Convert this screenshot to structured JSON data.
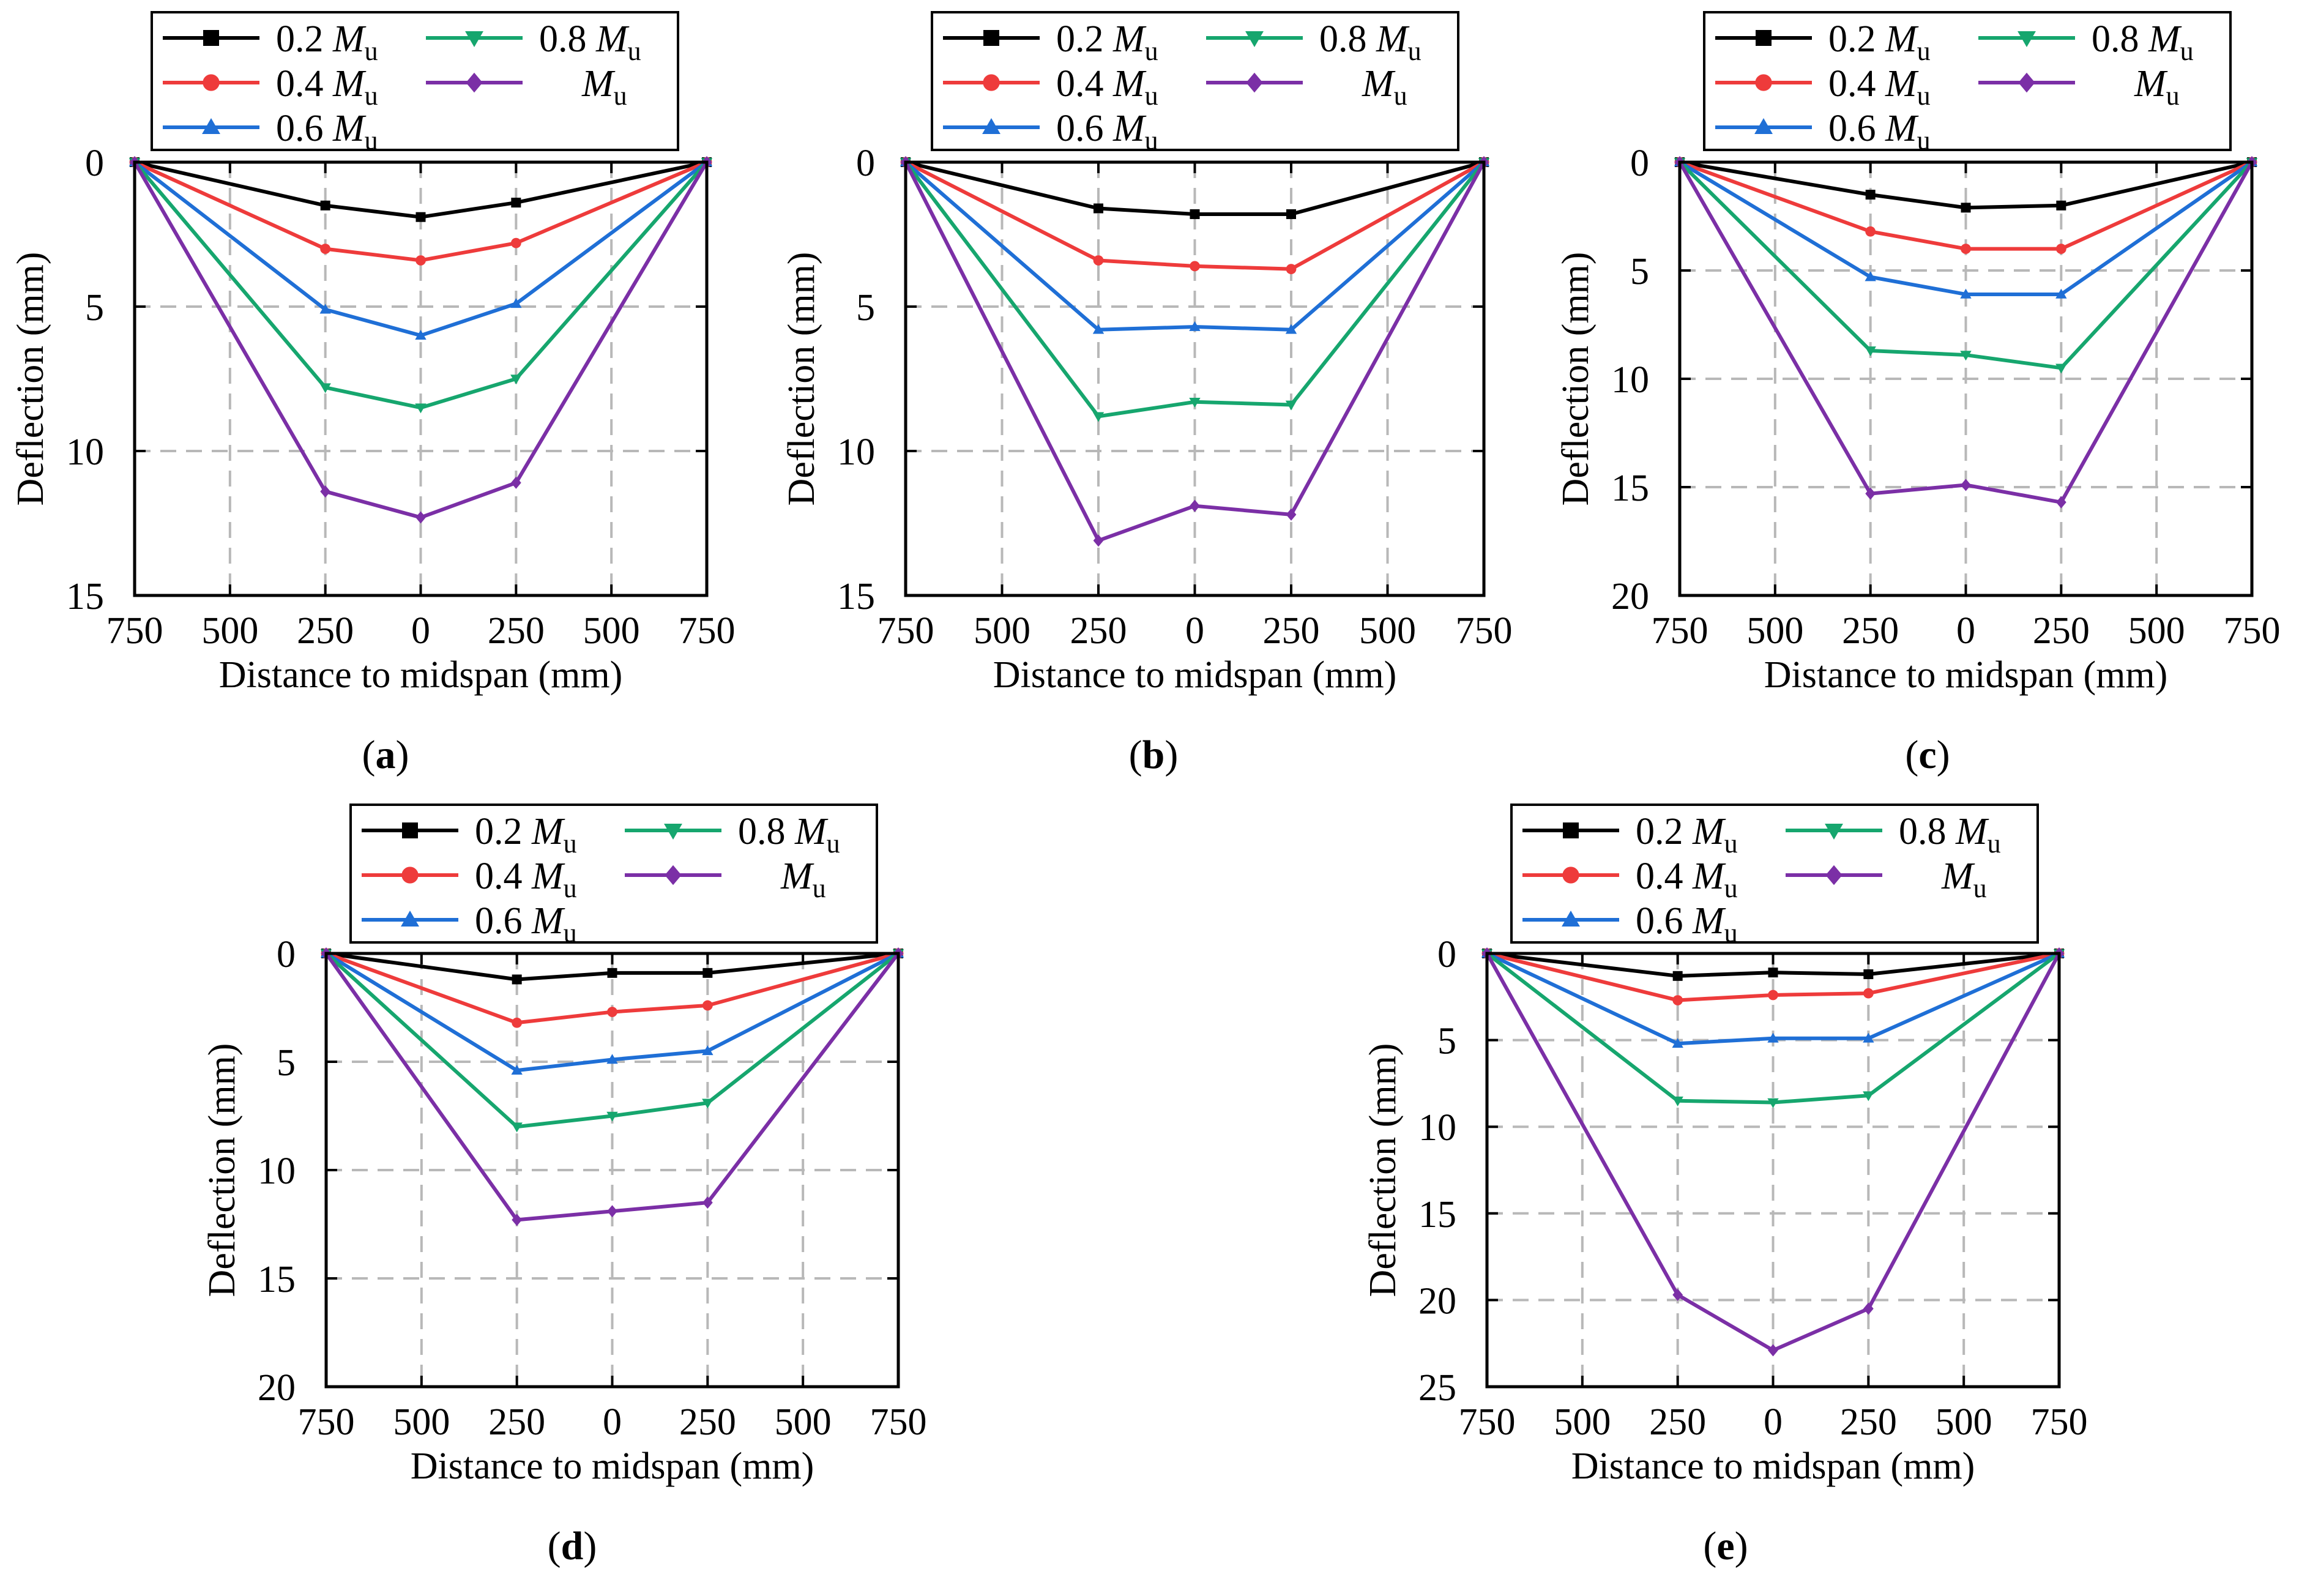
{
  "figure": {
    "series_colors": [
      "#000000",
      "#ee3b3b",
      "#1f6fd6",
      "#16a66e",
      "#7b2fa6"
    ],
    "series_markers": [
      "square",
      "circle",
      "triangle-up",
      "triangle-down",
      "diamond"
    ]
  },
  "chart_data": [
    {
      "type": "line",
      "caption_letter": "a",
      "xlabel": "Distance to midspan (mm)",
      "ylabel": "Deflection (mm)",
      "x": [
        -750,
        -250,
        0,
        250,
        750
      ],
      "x_tick_values": [
        -750,
        -500,
        -250,
        0,
        250,
        500,
        750
      ],
      "x_tick_labels": [
        "750",
        "500",
        "250",
        "0",
        "250",
        "500",
        "750"
      ],
      "ylim": [
        0,
        15
      ],
      "y_inverted": true,
      "y_ticks": [
        0,
        5,
        10,
        15
      ],
      "y_tick_labels": [
        "0",
        "5",
        "10",
        "15"
      ],
      "grid": true,
      "legend_position": "top",
      "series": [
        {
          "name": "0.2",
          "name_symbol": "M",
          "name_sub": "u",
          "values": [
            0,
            1.5,
            1.9,
            1.4,
            0
          ]
        },
        {
          "name": "0.4",
          "name_symbol": "M",
          "name_sub": "u",
          "values": [
            0,
            3.0,
            3.4,
            2.8,
            0
          ]
        },
        {
          "name": "0.6",
          "name_symbol": "M",
          "name_sub": "u",
          "values": [
            0,
            5.1,
            6.0,
            4.9,
            0
          ]
        },
        {
          "name": "0.8",
          "name_symbol": "M",
          "name_sub": "u",
          "values": [
            0,
            7.8,
            8.5,
            7.5,
            0
          ]
        },
        {
          "name": "",
          "name_symbol": "M",
          "name_sub": "u",
          "values": [
            0,
            11.4,
            12.3,
            11.1,
            0
          ]
        }
      ]
    },
    {
      "type": "line",
      "caption_letter": "b",
      "xlabel": "Distance to midspan (mm)",
      "ylabel": "Deflection (mm)",
      "x": [
        -750,
        -250,
        0,
        250,
        750
      ],
      "x_tick_values": [
        -750,
        -500,
        -250,
        0,
        250,
        500,
        750
      ],
      "x_tick_labels": [
        "750",
        "500",
        "250",
        "0",
        "250",
        "500",
        "750"
      ],
      "ylim": [
        0,
        15
      ],
      "y_inverted": true,
      "y_ticks": [
        0,
        5,
        10,
        15
      ],
      "y_tick_labels": [
        "0",
        "5",
        "10",
        "15"
      ],
      "grid": true,
      "legend_position": "top",
      "series": [
        {
          "name": "0.2",
          "name_symbol": "M",
          "name_sub": "u",
          "values": [
            0,
            1.6,
            1.8,
            1.8,
            0
          ]
        },
        {
          "name": "0.4",
          "name_symbol": "M",
          "name_sub": "u",
          "values": [
            0,
            3.4,
            3.6,
            3.7,
            0
          ]
        },
        {
          "name": "0.6",
          "name_symbol": "M",
          "name_sub": "u",
          "values": [
            0,
            5.8,
            5.7,
            5.8,
            0
          ]
        },
        {
          "name": "0.8",
          "name_symbol": "M",
          "name_sub": "u",
          "values": [
            0,
            8.8,
            8.3,
            8.4,
            0
          ]
        },
        {
          "name": "",
          "name_symbol": "M",
          "name_sub": "u",
          "values": [
            0,
            13.1,
            11.9,
            12.2,
            0
          ]
        }
      ]
    },
    {
      "type": "line",
      "caption_letter": "c",
      "xlabel": "Distance to midspan (mm)",
      "ylabel": "Deflection (mm)",
      "x": [
        -750,
        -250,
        0,
        250,
        750
      ],
      "x_tick_values": [
        -750,
        -500,
        -250,
        0,
        250,
        500,
        750
      ],
      "x_tick_labels": [
        "750",
        "500",
        "250",
        "0",
        "250",
        "500",
        "750"
      ],
      "ylim": [
        0,
        20
      ],
      "y_inverted": true,
      "y_ticks": [
        0,
        5,
        10,
        15,
        20
      ],
      "y_tick_labels": [
        "0",
        "5",
        "10",
        "15",
        "20"
      ],
      "grid": true,
      "legend_position": "top",
      "series": [
        {
          "name": "0.2",
          "name_symbol": "M",
          "name_sub": "u",
          "values": [
            0,
            1.5,
            2.1,
            2.0,
            0
          ]
        },
        {
          "name": "0.4",
          "name_symbol": "M",
          "name_sub": "u",
          "values": [
            0,
            3.2,
            4.0,
            4.0,
            0
          ]
        },
        {
          "name": "0.6",
          "name_symbol": "M",
          "name_sub": "u",
          "values": [
            0,
            5.3,
            6.1,
            6.1,
            0
          ]
        },
        {
          "name": "0.8",
          "name_symbol": "M",
          "name_sub": "u",
          "values": [
            0,
            8.7,
            8.9,
            9.5,
            0
          ]
        },
        {
          "name": "",
          "name_symbol": "M",
          "name_sub": "u",
          "values": [
            0,
            15.3,
            14.9,
            15.7,
            0
          ]
        }
      ]
    },
    {
      "type": "line",
      "caption_letter": "d",
      "xlabel": "Distance to midspan (mm)",
      "ylabel": "Deflection (mm)",
      "x": [
        -750,
        -250,
        0,
        250,
        750
      ],
      "x_tick_values": [
        -750,
        -500,
        -250,
        0,
        250,
        500,
        750
      ],
      "x_tick_labels": [
        "750",
        "500",
        "250",
        "0",
        "250",
        "500",
        "750"
      ],
      "ylim": [
        0,
        20
      ],
      "y_inverted": true,
      "y_ticks": [
        0,
        5,
        10,
        15,
        20
      ],
      "y_tick_labels": [
        "0",
        "5",
        "10",
        "15",
        "20"
      ],
      "grid": true,
      "legend_position": "top",
      "series": [
        {
          "name": "0.2",
          "name_symbol": "M",
          "name_sub": "u",
          "values": [
            0,
            1.2,
            0.9,
            0.9,
            0
          ]
        },
        {
          "name": "0.4",
          "name_symbol": "M",
          "name_sub": "u",
          "values": [
            0,
            3.2,
            2.7,
            2.4,
            0
          ]
        },
        {
          "name": "0.6",
          "name_symbol": "M",
          "name_sub": "u",
          "values": [
            0,
            5.4,
            4.9,
            4.5,
            0
          ]
        },
        {
          "name": "0.8",
          "name_symbol": "M",
          "name_sub": "u",
          "values": [
            0,
            8.0,
            7.5,
            6.9,
            0
          ]
        },
        {
          "name": "",
          "name_symbol": "M",
          "name_sub": "u",
          "values": [
            0,
            12.3,
            11.9,
            11.5,
            0
          ]
        }
      ]
    },
    {
      "type": "line",
      "caption_letter": "e",
      "xlabel": "Distance to midspan (mm)",
      "ylabel": "Deflection (mm)",
      "x": [
        -750,
        -250,
        0,
        250,
        750
      ],
      "x_tick_values": [
        -750,
        -500,
        -250,
        0,
        250,
        500,
        750
      ],
      "x_tick_labels": [
        "750",
        "500",
        "250",
        "0",
        "250",
        "500",
        "750"
      ],
      "ylim": [
        0,
        25
      ],
      "y_inverted": true,
      "y_ticks": [
        0,
        5,
        10,
        15,
        20,
        25
      ],
      "y_tick_labels": [
        "0",
        "5",
        "10",
        "15",
        "20",
        "25"
      ],
      "grid": true,
      "legend_position": "top",
      "series": [
        {
          "name": "0.2",
          "name_symbol": "M",
          "name_sub": "u",
          "values": [
            0,
            1.3,
            1.1,
            1.2,
            0
          ]
        },
        {
          "name": "0.4",
          "name_symbol": "M",
          "name_sub": "u",
          "values": [
            0,
            2.7,
            2.4,
            2.3,
            0
          ]
        },
        {
          "name": "0.6",
          "name_symbol": "M",
          "name_sub": "u",
          "values": [
            0,
            5.2,
            4.9,
            4.9,
            0
          ]
        },
        {
          "name": "0.8",
          "name_symbol": "M",
          "name_sub": "u",
          "values": [
            0,
            8.5,
            8.6,
            8.2,
            0
          ]
        },
        {
          "name": "",
          "name_symbol": "M",
          "name_sub": "u",
          "values": [
            0,
            19.7,
            22.9,
            20.5,
            0
          ]
        }
      ]
    }
  ]
}
